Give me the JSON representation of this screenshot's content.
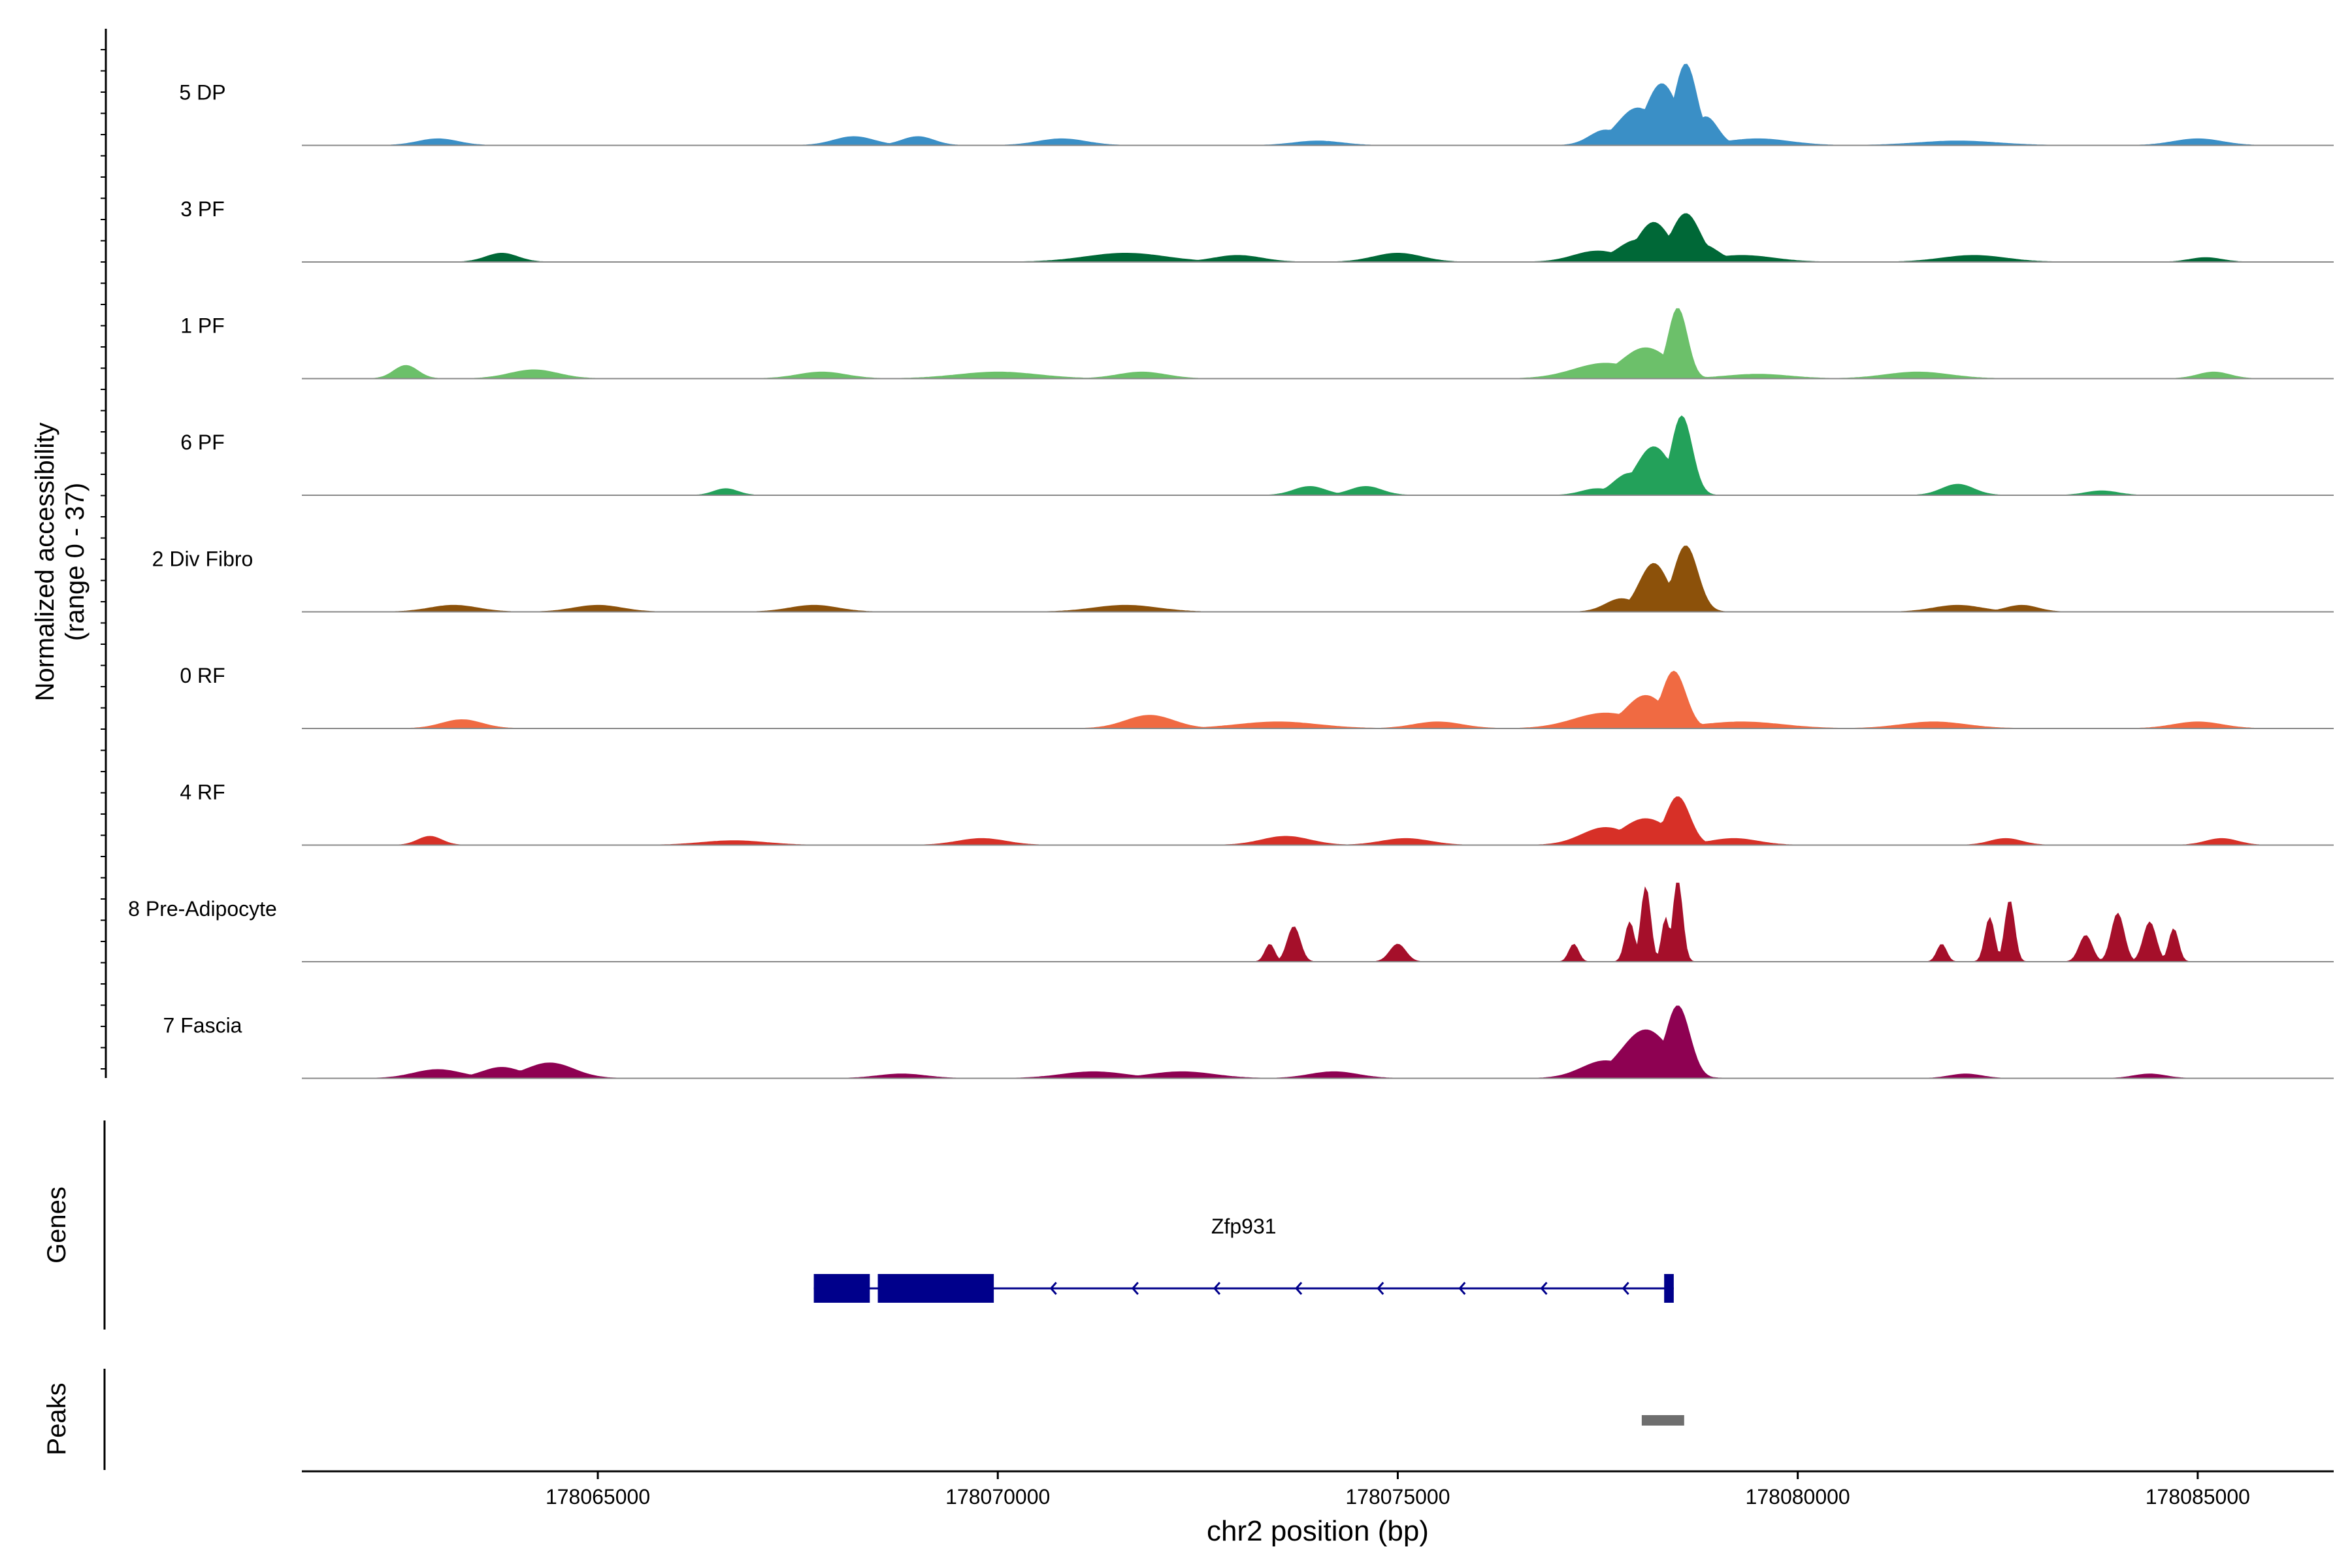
{
  "chart_data": {
    "type": "area",
    "title": "",
    "ylabel_main": "Normalized accessibility",
    "ylabel_range": "(range 0 - 37)",
    "xlabel": "chr2 position (bp)",
    "xlim": [
      178061300,
      178086700
    ],
    "ylim": [
      0,
      37
    ],
    "x_ticks": [
      178065000,
      178070000,
      178075000,
      178080000,
      178085000
    ],
    "x_tick_labels": [
      "178065000",
      "178070000",
      "178075000",
      "178080000",
      "178085000"
    ],
    "series": [
      {
        "name": "5 DP",
        "color": "#3A8FC6",
        "peaks": [
          [
            178078300,
            200,
            28
          ],
          [
            178078600,
            140,
            37
          ],
          [
            178078000,
            250,
            17
          ],
          [
            178078850,
            150,
            13
          ],
          [
            178077600,
            200,
            7
          ],
          [
            178063000,
            250,
            3
          ],
          [
            178068200,
            250,
            4
          ],
          [
            178069000,
            200,
            4
          ],
          [
            178070800,
            300,
            3
          ],
          [
            178074000,
            300,
            2
          ],
          [
            178079500,
            400,
            3
          ],
          [
            178082000,
            500,
            2
          ],
          [
            178085000,
            300,
            3
          ]
        ]
      },
      {
        "name": "3 PF",
        "color": "#006837",
        "peaks": [
          [
            178078200,
            200,
            18
          ],
          [
            178078600,
            180,
            22
          ],
          [
            178078000,
            250,
            10
          ],
          [
            178078800,
            200,
            8
          ],
          [
            178077500,
            300,
            5
          ],
          [
            178063800,
            200,
            4
          ],
          [
            178071600,
            500,
            4
          ],
          [
            178073000,
            300,
            3
          ],
          [
            178075000,
            300,
            4
          ],
          [
            178079300,
            400,
            3
          ],
          [
            178082200,
            400,
            3
          ],
          [
            178085100,
            200,
            2
          ]
        ]
      },
      {
        "name": "1 PF",
        "color": "#6CC06A",
        "peaks": [
          [
            178078500,
            120,
            32
          ],
          [
            178078100,
            300,
            14
          ],
          [
            178077600,
            400,
            7
          ],
          [
            178062600,
            150,
            6
          ],
          [
            178064200,
            300,
            4
          ],
          [
            178067800,
            300,
            3
          ],
          [
            178070000,
            500,
            3
          ],
          [
            178071800,
            300,
            3
          ],
          [
            178079500,
            400,
            2
          ],
          [
            178081500,
            400,
            3
          ],
          [
            178085200,
            200,
            3
          ]
        ]
      },
      {
        "name": "6 PF",
        "color": "#23A15A",
        "peaks": [
          [
            178078550,
            130,
            36
          ],
          [
            178078200,
            220,
            22
          ],
          [
            178077900,
            200,
            10
          ],
          [
            178073900,
            200,
            4
          ],
          [
            178074600,
            200,
            4
          ],
          [
            178066600,
            150,
            3
          ],
          [
            178082000,
            200,
            5
          ],
          [
            178077500,
            200,
            3
          ],
          [
            178083800,
            200,
            2
          ]
        ]
      },
      {
        "name": "2 Div Fibro",
        "color": "#8C510A",
        "peaks": [
          [
            178078600,
            150,
            30
          ],
          [
            178078200,
            180,
            22
          ],
          [
            178077800,
            200,
            6
          ],
          [
            178065000,
            300,
            3
          ],
          [
            178067700,
            300,
            3
          ],
          [
            178071600,
            400,
            3
          ],
          [
            178082000,
            300,
            3
          ],
          [
            178082800,
            200,
            3
          ],
          [
            178063200,
            300,
            3
          ]
        ]
      },
      {
        "name": "0 RF",
        "color": "#F06A42",
        "peaks": [
          [
            178078450,
            150,
            26
          ],
          [
            178078100,
            250,
            15
          ],
          [
            178077600,
            400,
            7
          ],
          [
            178071900,
            300,
            6
          ],
          [
            178063300,
            250,
            4
          ],
          [
            178073500,
            500,
            3
          ],
          [
            178075500,
            300,
            3
          ],
          [
            178079300,
            500,
            3
          ],
          [
            178081700,
            400,
            3
          ],
          [
            178085000,
            300,
            3
          ]
        ]
      },
      {
        "name": "4 RF",
        "color": "#D73027",
        "peaks": [
          [
            178078500,
            150,
            22
          ],
          [
            178078100,
            300,
            12
          ],
          [
            178077600,
            300,
            8
          ],
          [
            178062900,
            150,
            4
          ],
          [
            178073600,
            300,
            4
          ],
          [
            178075100,
            300,
            3
          ],
          [
            178079200,
            300,
            3
          ],
          [
            178082600,
            200,
            3
          ],
          [
            178085300,
            200,
            3
          ],
          [
            178069800,
            300,
            3
          ],
          [
            178066700,
            400,
            2
          ]
        ]
      },
      {
        "name": "8 Pre-Adipocyte",
        "color": "#A50F2A",
        "peaks": [
          [
            178078500,
            60,
            37
          ],
          [
            178078100,
            60,
            34
          ],
          [
            178078350,
            50,
            20
          ],
          [
            178077900,
            60,
            18
          ],
          [
            178073700,
            80,
            16
          ],
          [
            178082650,
            60,
            28
          ],
          [
            178082400,
            60,
            20
          ],
          [
            178084000,
            80,
            22
          ],
          [
            178084400,
            80,
            18
          ],
          [
            178084700,
            60,
            15
          ],
          [
            178073400,
            60,
            8
          ],
          [
            178075000,
            100,
            8
          ],
          [
            178083600,
            80,
            12
          ],
          [
            178081800,
            60,
            8
          ],
          [
            178077200,
            60,
            8
          ]
        ]
      },
      {
        "name": "7 Fascia",
        "color": "#8E0152",
        "peaks": [
          [
            178078500,
            150,
            33
          ],
          [
            178078100,
            300,
            22
          ],
          [
            178077600,
            300,
            8
          ],
          [
            178064400,
            300,
            7
          ],
          [
            178063800,
            250,
            5
          ],
          [
            178063000,
            300,
            4
          ],
          [
            178071200,
            400,
            3
          ],
          [
            178072300,
            400,
            3
          ],
          [
            178074200,
            300,
            3
          ],
          [
            178068800,
            300,
            2
          ],
          [
            178082100,
            200,
            2
          ],
          [
            178084400,
            200,
            2
          ]
        ]
      }
    ],
    "genes_label": "Genes",
    "gene": {
      "name": "Zfp931",
      "strand": "-",
      "start": 178067700,
      "end": 178078450,
      "exons": [
        [
          178067700,
          178068400
        ],
        [
          178068500,
          178069950
        ],
        [
          178078330,
          178078450
        ]
      ],
      "color": "#00008B"
    },
    "peaks_label": "Peaks",
    "peak_regions": [
      [
        178078050,
        178078580
      ]
    ]
  }
}
